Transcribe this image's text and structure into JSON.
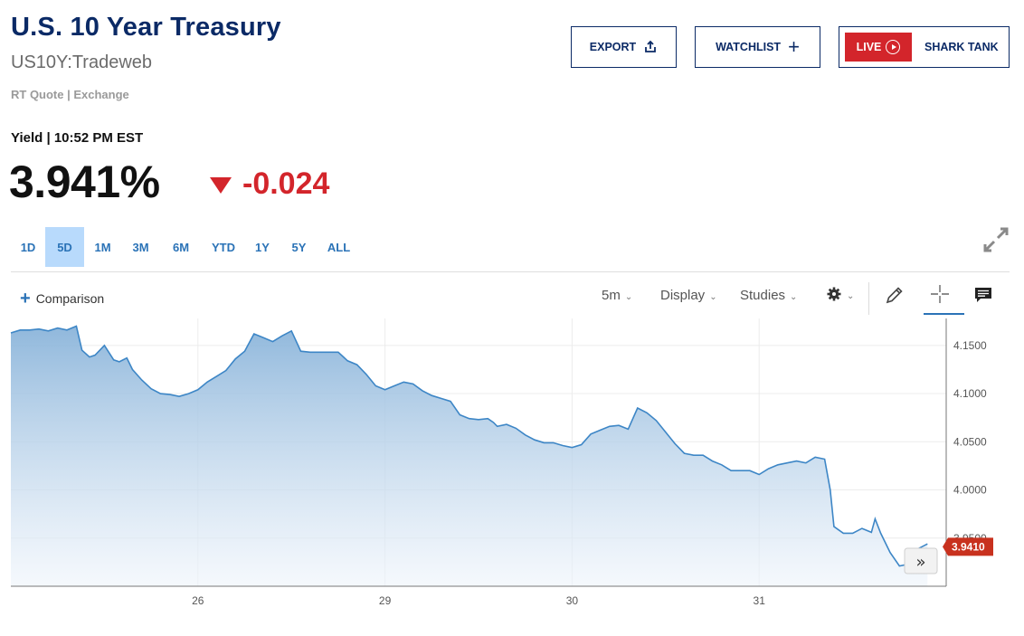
{
  "header": {
    "title": "U.S. 10 Year Treasury",
    "symbol": "US10Y:Tradeweb",
    "quote_source": "RT Quote | Exchange",
    "yield_label": "Yield | 10:52 PM EST",
    "price": "3.941%",
    "change": "-0.024"
  },
  "buttons": {
    "export": "EXPORT",
    "watchlist": "WATCHLIST",
    "live": "LIVE",
    "shark_tank": "SHARK TANK"
  },
  "ranges": [
    "1D",
    "5D",
    "1M",
    "3M",
    "6M",
    "YTD",
    "1Y",
    "5Y",
    "ALL"
  ],
  "active_range": "5D",
  "toolbar": {
    "comparison": "Comparison",
    "interval": "5m",
    "display": "Display",
    "studies": "Studies"
  },
  "colors": {
    "brand": "#0b2a66",
    "accent": "#2b73b7",
    "down": "#d3252b",
    "line": "#3d86c6",
    "price_tag": "#c8311e"
  },
  "icons": [
    "export-icon",
    "plus-icon",
    "play-icon",
    "expand-icon",
    "gear-icon",
    "pencil-icon",
    "crosshair-icon",
    "comment-icon",
    "chevron-right-double-icon"
  ],
  "chart_data": {
    "type": "area",
    "title": "",
    "xlabel": "",
    "ylabel": "",
    "x_ticks": [
      "26",
      "29",
      "30",
      "31"
    ],
    "y_ticks": [
      3.95,
      4.0,
      4.05,
      4.1,
      4.15
    ],
    "y_tick_labels": [
      "3.9500",
      "4.0000",
      "4.0500",
      "4.1000",
      "4.1500"
    ],
    "ylim": [
      3.9,
      4.178
    ],
    "x_domain": [
      0,
      5
    ],
    "last_value": 3.941,
    "last_value_label": "3.9410",
    "grid": true,
    "series": [
      {
        "x": [
          0,
          0.05,
          0.1,
          0.15,
          0.2,
          0.25,
          0.3,
          0.35,
          0.38,
          0.42,
          0.45,
          0.5,
          0.55,
          0.58,
          0.62,
          0.65,
          0.7,
          0.75,
          0.8,
          0.85,
          0.9,
          0.95,
          1.0,
          1.05,
          1.1,
          1.15,
          1.2,
          1.25,
          1.3,
          1.35,
          1.4,
          1.45,
          1.5,
          1.55,
          1.6,
          1.65,
          1.7,
          1.75,
          1.8,
          1.85,
          1.9,
          1.95,
          2.0,
          2.05,
          2.1,
          2.15,
          2.2,
          2.25,
          2.3,
          2.35,
          2.4,
          2.45,
          2.5,
          2.55,
          2.58,
          2.6,
          2.65,
          2.7,
          2.75,
          2.8,
          2.85,
          2.9,
          2.95,
          3.0,
          3.05,
          3.1,
          3.15,
          3.2,
          3.25,
          3.3,
          3.35,
          3.4,
          3.45,
          3.5,
          3.55,
          3.6,
          3.65,
          3.7,
          3.75,
          3.8,
          3.85,
          3.9,
          3.95,
          4.0,
          4.05,
          4.1,
          4.15,
          4.2,
          4.25,
          4.3,
          4.35,
          4.38,
          4.4,
          4.45,
          4.5,
          4.55,
          4.6,
          4.62,
          4.65,
          4.7,
          4.75,
          4.8,
          4.85,
          4.9
        ],
        "values": [
          4.163,
          4.166,
          4.166,
          4.167,
          4.165,
          4.168,
          4.166,
          4.17,
          4.145,
          4.138,
          4.14,
          4.15,
          4.135,
          4.133,
          4.137,
          4.125,
          4.114,
          4.105,
          4.1,
          4.099,
          4.097,
          4.1,
          4.104,
          4.112,
          4.118,
          4.124,
          4.136,
          4.144,
          4.162,
          4.158,
          4.154,
          4.16,
          4.165,
          4.144,
          4.143,
          4.143,
          4.143,
          4.143,
          4.134,
          4.13,
          4.12,
          4.108,
          4.104,
          4.108,
          4.112,
          4.11,
          4.103,
          4.098,
          4.095,
          4.092,
          4.078,
          4.074,
          4.073,
          4.074,
          4.07,
          4.066,
          4.068,
          4.064,
          4.057,
          4.052,
          4.049,
          4.049,
          4.046,
          4.044,
          4.047,
          4.058,
          4.062,
          4.066,
          4.067,
          4.063,
          4.085,
          4.08,
          4.072,
          4.06,
          4.048,
          4.038,
          4.036,
          4.036,
          4.03,
          4.026,
          4.02,
          4.02,
          4.02,
          4.016,
          4.022,
          4.026,
          4.028,
          4.03,
          4.028,
          4.034,
          4.032,
          4.0,
          3.962,
          3.955,
          3.955,
          3.96,
          3.956,
          3.97,
          3.955,
          3.935,
          3.921,
          3.923,
          3.939,
          3.944
        ]
      }
    ]
  }
}
